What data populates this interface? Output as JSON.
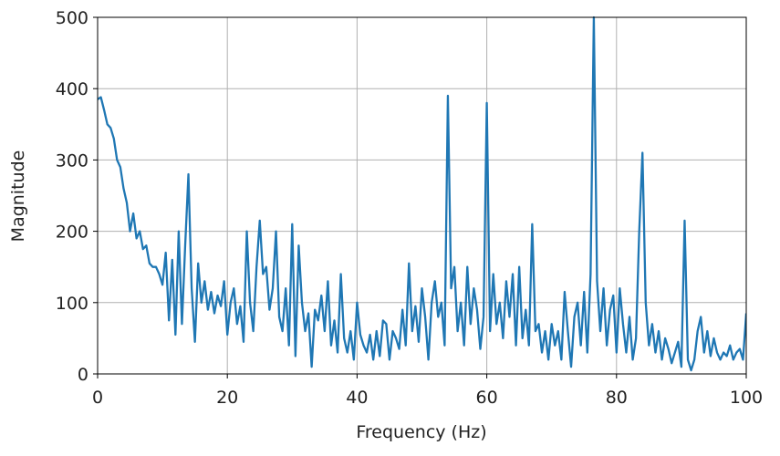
{
  "chart_data": {
    "type": "line",
    "xlabel": "Frequency (Hz)",
    "ylabel": "Magnitude",
    "xlim": [
      0,
      100
    ],
    "ylim": [
      0,
      500
    ],
    "xticks": [
      0,
      20,
      40,
      60,
      80,
      100
    ],
    "yticks": [
      0,
      100,
      200,
      300,
      400,
      500
    ],
    "grid": true,
    "x": [
      0,
      0.5,
      1,
      1.5,
      2,
      2.5,
      3,
      3.5,
      4,
      4.5,
      5,
      5.5,
      6,
      6.5,
      7,
      7.5,
      8,
      8.5,
      9,
      9.5,
      10,
      10.5,
      11,
      11.5,
      12,
      12.5,
      13,
      13.5,
      14,
      14.5,
      15,
      15.5,
      16,
      16.5,
      17,
      17.5,
      18,
      18.5,
      19,
      19.5,
      20,
      20.5,
      21,
      21.5,
      22,
      22.5,
      23,
      23.5,
      24,
      24.5,
      25,
      25.5,
      26,
      26.5,
      27,
      27.5,
      28,
      28.5,
      29,
      29.5,
      30,
      30.5,
      31,
      31.5,
      32,
      32.5,
      33,
      33.5,
      34,
      34.5,
      35,
      35.5,
      36,
      36.5,
      37,
      37.5,
      38,
      38.5,
      39,
      39.5,
      40,
      40.5,
      41,
      41.5,
      42,
      42.5,
      43,
      43.5,
      44,
      44.5,
      45,
      45.5,
      46,
      46.5,
      47,
      47.5,
      48,
      48.5,
      49,
      49.5,
      50,
      50.5,
      51,
      51.5,
      52,
      52.5,
      53,
      53.5,
      54,
      54.5,
      55,
      55.5,
      56,
      56.5,
      57,
      57.5,
      58,
      58.5,
      59,
      59.5,
      60,
      60.5,
      61,
      61.5,
      62,
      62.5,
      63,
      63.5,
      64,
      64.5,
      65,
      65.5,
      66,
      66.5,
      67,
      67.5,
      68,
      68.5,
      69,
      69.5,
      70,
      70.5,
      71,
      71.5,
      72,
      72.5,
      73,
      73.5,
      74,
      74.5,
      75,
      75.5,
      76,
      76.5,
      77,
      77.5,
      78,
      78.5,
      79,
      79.5,
      80,
      80.5,
      81,
      81.5,
      82,
      82.5,
      83,
      83.5,
      84,
      84.5,
      85,
      85.5,
      86,
      86.5,
      87,
      87.5,
      88,
      88.5,
      89,
      89.5,
      90,
      90.5,
      91,
      91.5,
      92,
      92.5,
      93,
      93.5,
      94,
      94.5,
      95,
      95.5,
      96,
      96.5,
      97,
      97.5,
      98,
      98.5,
      99,
      99.5,
      100
    ],
    "series": [
      {
        "color": "#1f77b4",
        "values": [
          385,
          388,
          370,
          350,
          345,
          330,
          300,
          290,
          260,
          240,
          200,
          225,
          190,
          200,
          175,
          180,
          155,
          150,
          150,
          140,
          125,
          170,
          75,
          160,
          55,
          200,
          70,
          180,
          280,
          120,
          45,
          155,
          100,
          130,
          90,
          115,
          85,
          110,
          95,
          130,
          55,
          100,
          120,
          70,
          95,
          45,
          200,
          100,
          60,
          150,
          215,
          140,
          150,
          90,
          120,
          200,
          80,
          60,
          120,
          40,
          210,
          25,
          180,
          100,
          60,
          85,
          10,
          90,
          75,
          110,
          60,
          130,
          40,
          75,
          30,
          140,
          50,
          30,
          60,
          20,
          100,
          55,
          40,
          30,
          55,
          20,
          60,
          25,
          75,
          70,
          20,
          60,
          50,
          35,
          90,
          40,
          155,
          60,
          95,
          45,
          120,
          80,
          20,
          100,
          130,
          80,
          100,
          40,
          390,
          120,
          150,
          60,
          100,
          40,
          150,
          70,
          120,
          90,
          35,
          80,
          380,
          60,
          140,
          70,
          100,
          50,
          130,
          80,
          140,
          40,
          150,
          50,
          90,
          40,
          210,
          60,
          70,
          30,
          60,
          20,
          70,
          40,
          60,
          20,
          115,
          60,
          10,
          80,
          100,
          40,
          115,
          30,
          140,
          500,
          130,
          60,
          120,
          40,
          90,
          110,
          30,
          120,
          70,
          30,
          80,
          20,
          50,
          200,
          310,
          100,
          40,
          70,
          30,
          60,
          20,
          50,
          35,
          15,
          30,
          45,
          10,
          215,
          20,
          5,
          20,
          60,
          80,
          30,
          60,
          25,
          50,
          30,
          20,
          30,
          25,
          40,
          20,
          30,
          35,
          20,
          85
        ]
      }
    ]
  }
}
